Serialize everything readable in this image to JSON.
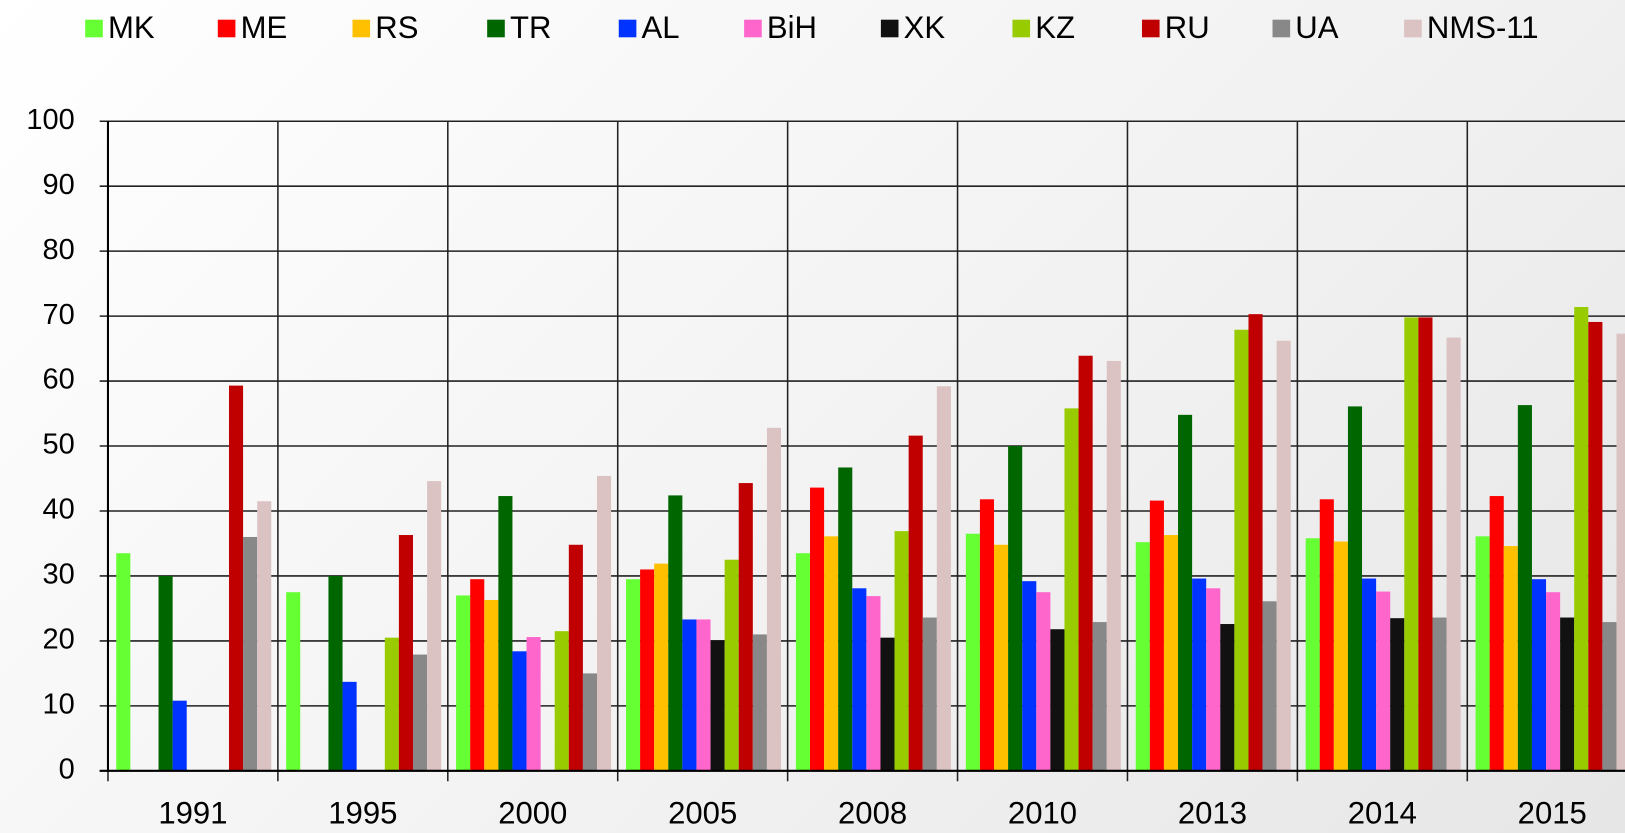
{
  "chart_data": {
    "type": "bar",
    "grid": true,
    "legend": "top",
    "categories": [
      "1991",
      "1995",
      "2000",
      "2005",
      "2008",
      "2010",
      "2013",
      "2014",
      "2015"
    ],
    "ylim": [
      0,
      100
    ],
    "yticks": [
      0,
      10,
      20,
      30,
      40,
      50,
      60,
      70,
      80,
      90,
      100
    ],
    "series": [
      {
        "name": "MK",
        "color": "#66ff33",
        "values": [
          33.5,
          27.5,
          27,
          29.5,
          33.5,
          36.5,
          35.2,
          35.8,
          36.1
        ]
      },
      {
        "name": "ME",
        "color": "#ff0000",
        "values": [
          null,
          null,
          29.5,
          31,
          43.6,
          41.8,
          41.6,
          41.8,
          42.3
        ]
      },
      {
        "name": "RS",
        "color": "#ffc000",
        "values": [
          null,
          null,
          26.3,
          31.9,
          36.1,
          34.8,
          36.3,
          35.3,
          34.6
        ]
      },
      {
        "name": "TR",
        "color": "#006600",
        "values": [
          30,
          30,
          42.3,
          42.4,
          46.7,
          50,
          54.8,
          56.1,
          56.3
        ]
      },
      {
        "name": "AL",
        "color": "#0033ff",
        "values": [
          10.8,
          13.7,
          18.4,
          23.3,
          28.1,
          29.2,
          29.6,
          29.6,
          29.5
        ]
      },
      {
        "name": "BiH",
        "color": "#ff66cc",
        "values": [
          null,
          null,
          20.6,
          23.3,
          26.9,
          27.5,
          28.1,
          27.6,
          27.5
        ]
      },
      {
        "name": "XK",
        "color": "#111111",
        "values": [
          null,
          null,
          null,
          20.1,
          20.5,
          21.8,
          22.6,
          23.5,
          23.6
        ]
      },
      {
        "name": "KZ",
        "color": "#99cc00",
        "values": [
          null,
          20.5,
          21.5,
          32.5,
          36.9,
          55.8,
          67.9,
          69.8,
          71.4
        ]
      },
      {
        "name": "RU",
        "color": "#c00000",
        "values": [
          59.3,
          36.3,
          34.8,
          44.3,
          51.6,
          63.9,
          70.3,
          69.8,
          69.1
        ]
      },
      {
        "name": "UA",
        "color": "#888888",
        "values": [
          36,
          17.9,
          15,
          21,
          23.6,
          22.9,
          26.1,
          23.6,
          22.9
        ]
      },
      {
        "name": "NMS-11",
        "color": "#dcc3c3",
        "values": [
          41.5,
          44.6,
          45.4,
          52.8,
          59.2,
          63.1,
          66.2,
          66.7,
          67.3
        ]
      }
    ]
  }
}
